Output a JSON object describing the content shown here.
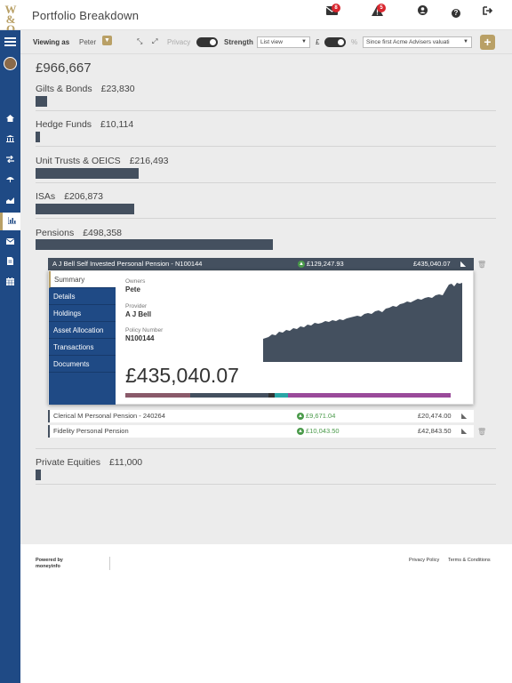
{
  "app": {
    "title": "Portfolio Breakdown",
    "logo_text": "W&O"
  },
  "topbar": {
    "messages_badge": "8",
    "alerts_badge": "5"
  },
  "toolbar": {
    "viewing_as_label": "Viewing as",
    "viewing_as_value": "Peter",
    "privacy_label": "Privacy",
    "strength_label": "Strength",
    "view_select": "List view",
    "currency_label": "£",
    "percent_label": "%",
    "period_select": "Since first Acme Advisers valuati"
  },
  "portfolio": {
    "total": "£966,667",
    "categories": [
      {
        "name": "Gilts & Bonds",
        "value": "£23,830",
        "share": 0.048
      },
      {
        "name": "Hedge Funds",
        "value": "£10,114",
        "share": 0.02
      },
      {
        "name": "Unit Trusts & OEICS",
        "value": "£216,493",
        "share": 0.434
      },
      {
        "name": "ISAs",
        "value": "£206,873",
        "share": 0.415
      },
      {
        "name": "Pensions",
        "value": "£498,358",
        "share": 1.0
      },
      {
        "name": "Private Equities",
        "value": "£11,000",
        "share": 0.022
      }
    ]
  },
  "account": {
    "name": "A J Bell Self Invested Personal Pension - N100144",
    "gain": "£129,247.93",
    "value": "£435,040.07",
    "tabs": [
      "Summary",
      "Details",
      "Holdings",
      "Asset Allocation",
      "Transactions",
      "Documents"
    ],
    "owners_label": "Owners",
    "owners": "Pete",
    "provider_label": "Provider",
    "provider": "A J Bell",
    "policy_label": "Policy Number",
    "policy": "N100144",
    "big_value": "£435,040.07",
    "allocation": [
      {
        "color": "#8a5a6a",
        "share": 0.2
      },
      {
        "color": "#44505f",
        "share": 0.24
      },
      {
        "color": "#333333",
        "share": 0.02
      },
      {
        "color": "#2aa6a6",
        "share": 0.04
      },
      {
        "color": "#9a4a9a",
        "share": 0.5
      }
    ]
  },
  "other_accounts": [
    {
      "name": "Clerical M Personal Pension - 240264",
      "gain": "£9,671.04",
      "value": "£20,474.00"
    },
    {
      "name": "Fidelity Personal Pension",
      "gain": "£10,043.50",
      "value": "£42,843.50"
    }
  ],
  "footer": {
    "powered_by": "Powered by",
    "powered_brand": "moneyinfo",
    "privacy": "Privacy Policy",
    "terms": "Terms & Conditions"
  },
  "colors": {
    "navy": "#1f4a85",
    "gold": "#b9a066",
    "bar": "#44505f",
    "gain": "#4a9a4a"
  },
  "icons": [
    "menu-icon",
    "home-icon",
    "bank-icon",
    "transfer-icon",
    "umbrella-icon",
    "area-chart-icon",
    "bar-chart-icon",
    "envelope-icon",
    "document-icon",
    "calendar-icon",
    "user-icon",
    "help-icon",
    "sign-out-icon",
    "warning-icon",
    "rss-icon",
    "trash-icon"
  ]
}
